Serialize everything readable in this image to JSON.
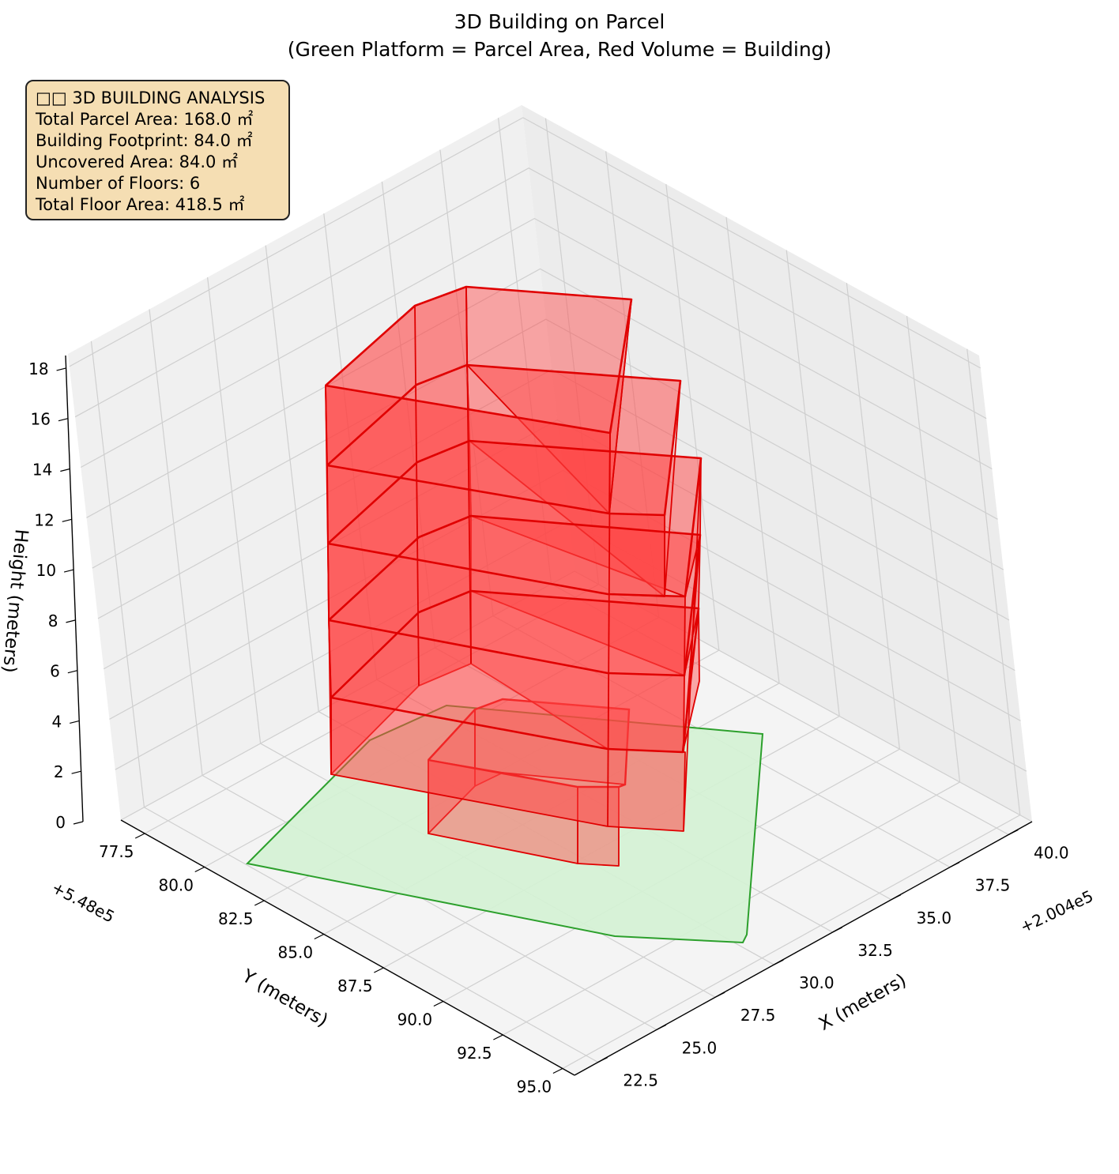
{
  "chart_data": {
    "type": "3d-polygons",
    "title": [
      "3D Building on Parcel",
      "(Green Platform = Parcel Area, Red Volume = Building)"
    ],
    "xlabel": "X (meters)",
    "ylabel": "Y (meters)",
    "zlabel": "Height (meters)",
    "x_offset_label": "+2.004e5",
    "y_offset_label": "+5.48e5",
    "x_ticks": [
      "22.5",
      "25.0",
      "27.5",
      "30.0",
      "32.5",
      "35.0",
      "37.5",
      "40.0"
    ],
    "y_ticks": [
      "77.5",
      "80.0",
      "82.5",
      "85.0",
      "87.5",
      "90.0",
      "92.5",
      "95.0"
    ],
    "z_ticks": [
      "0",
      "2",
      "4",
      "6",
      "8",
      "10",
      "12",
      "14",
      "16",
      "18"
    ],
    "xlim": [
      21.5,
      41.0
    ],
    "ylim": [
      76.5,
      95.5
    ],
    "zlim": [
      0,
      18.5
    ],
    "grid": true,
    "floors": 6,
    "floor_height": 3,
    "colors": {
      "parcel_fill": "#d4f2d4",
      "parcel_edge": "#2ca02c",
      "building_fill": "#ff4444",
      "building_edge": "#e00000"
    },
    "info": [
      "□□ 3D BUILDING ANALYSIS",
      "Total Parcel Area: 168.0 ㎡",
      "Building Footprint: 84.0 ㎡",
      "Uncovered Area: 84.0 ㎡",
      "Number of Floors: 6",
      "Total Floor Area: 418.5 ㎡"
    ]
  }
}
